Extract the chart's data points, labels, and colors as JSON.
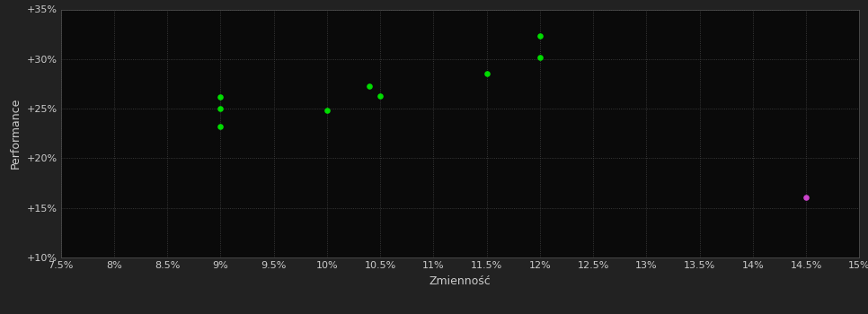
{
  "background_color": "#222222",
  "plot_bg_color": "#0a0a0a",
  "grid_color": "#444444",
  "text_color": "#cccccc",
  "xlabel": "Zmienność",
  "ylabel": "Performance",
  "xlim": [
    0.075,
    0.15
  ],
  "ylim": [
    0.1,
    0.35
  ],
  "xticks": [
    0.075,
    0.08,
    0.085,
    0.09,
    0.095,
    0.1,
    0.105,
    0.11,
    0.115,
    0.12,
    0.125,
    0.13,
    0.135,
    0.14,
    0.145,
    0.15
  ],
  "yticks": [
    0.1,
    0.15,
    0.2,
    0.25,
    0.3,
    0.35
  ],
  "green_points": [
    [
      0.09,
      0.262
    ],
    [
      0.09,
      0.25
    ],
    [
      0.09,
      0.232
    ],
    [
      0.1,
      0.248
    ],
    [
      0.104,
      0.273
    ],
    [
      0.105,
      0.263
    ],
    [
      0.115,
      0.285
    ],
    [
      0.12,
      0.323
    ],
    [
      0.12,
      0.302
    ]
  ],
  "magenta_points": [
    [
      0.145,
      0.161
    ]
  ],
  "green_color": "#00dd00",
  "magenta_color": "#cc44cc",
  "point_size": 14,
  "font_size_labels": 9,
  "font_size_ticks": 8
}
